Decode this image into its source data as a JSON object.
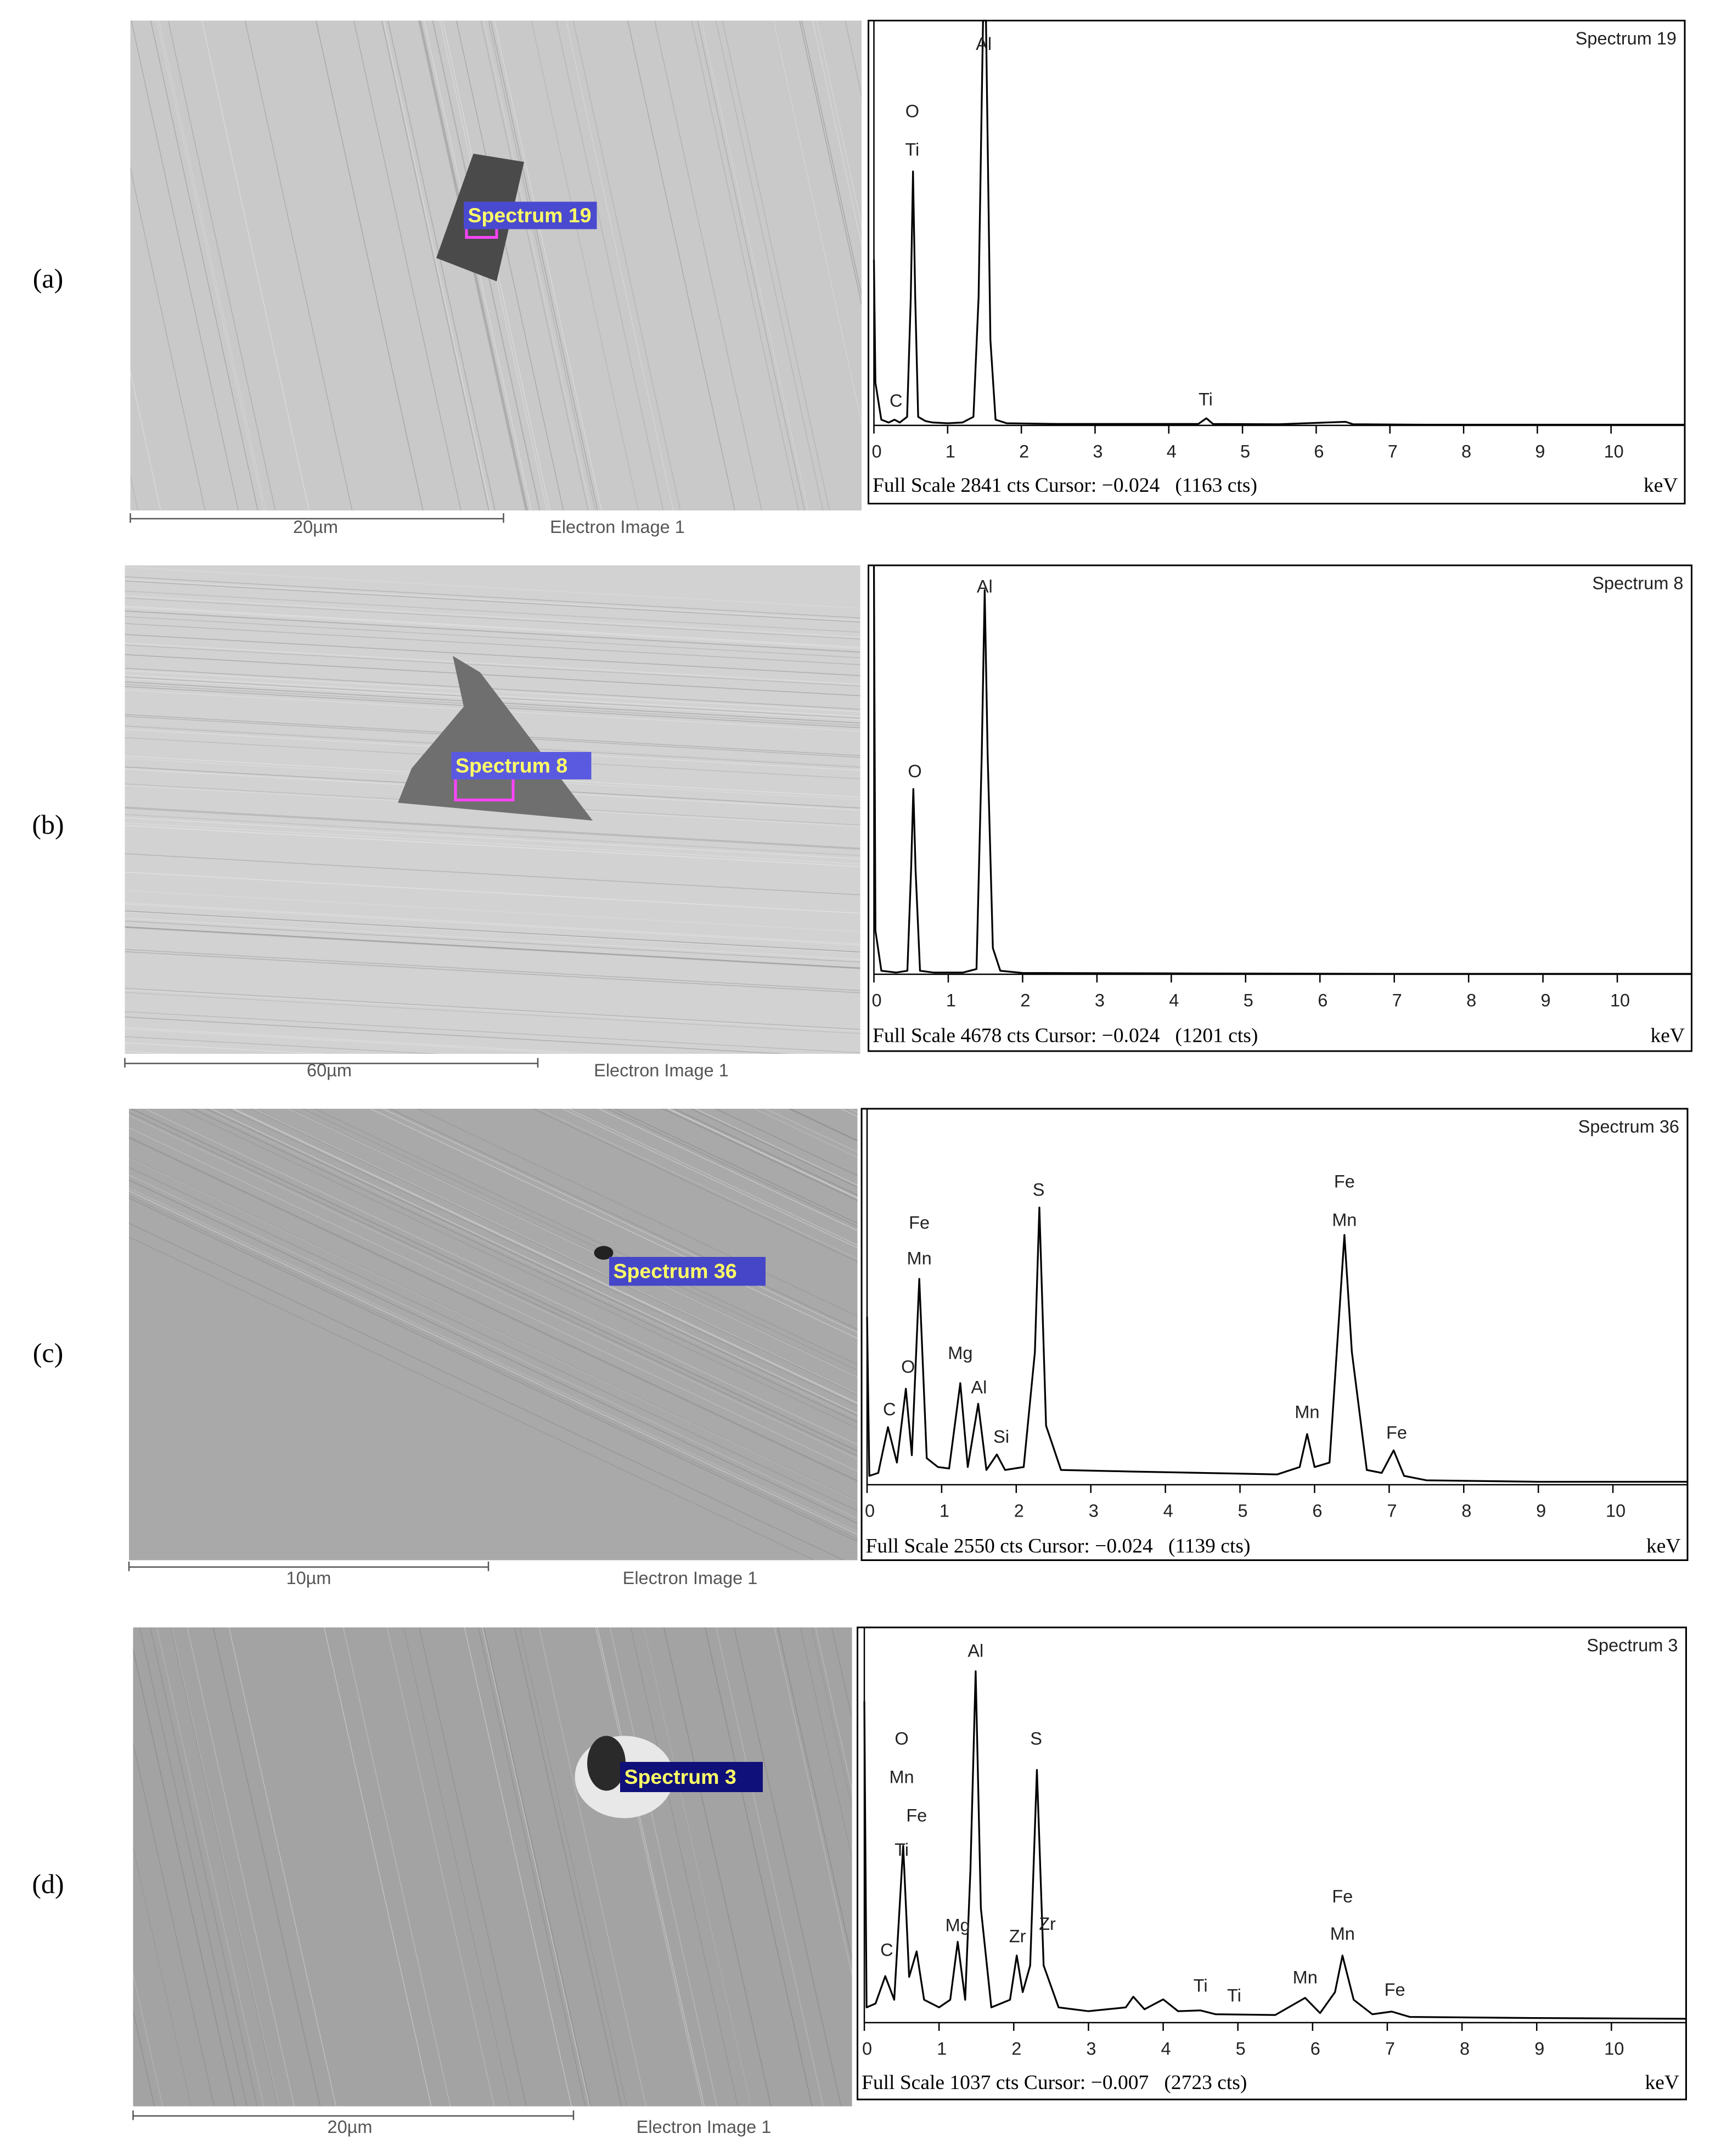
{
  "panels": [
    {
      "label": "(a)",
      "sem": {
        "spectrum_label": "Spectrum 19",
        "scale_bar": "20µm",
        "caption": "Electron Image 1"
      }
    },
    {
      "label": "(b)",
      "sem": {
        "spectrum_label": "Spectrum 8",
        "scale_bar": "60µm",
        "caption": "Electron Image 1"
      }
    },
    {
      "label": "(c)",
      "sem": {
        "spectrum_label": "Spectrum 36",
        "scale_bar": "10µm",
        "caption": "Electron Image 1"
      }
    },
    {
      "label": "(d)",
      "sem": {
        "spectrum_label": "Spectrum 3",
        "scale_bar": "20µm",
        "caption": "Electron Image 1"
      }
    }
  ],
  "chart_data": [
    {
      "type": "line",
      "title": "Spectrum 19",
      "footer": "Full Scale 2841 cts Cursor: −0.024   (1163 cts)",
      "x_label": "keV",
      "color": "#000000",
      "x": [
        0,
        0.02,
        0.1,
        0.2,
        0.28,
        0.35,
        0.45,
        0.5,
        0.53,
        0.56,
        0.6,
        0.7,
        0.8,
        1.0,
        1.2,
        1.35,
        1.42,
        1.48,
        1.52,
        1.58,
        1.65,
        1.8,
        2.5,
        3.5,
        4.4,
        4.51,
        4.6,
        5.5,
        6.4,
        6.5,
        7.5,
        9,
        11
      ],
      "values": [
        1163,
        300,
        40,
        20,
        40,
        20,
        60,
        900,
        1782,
        900,
        60,
        30,
        20,
        15,
        20,
        60,
        900,
        2841,
        2841,
        600,
        40,
        15,
        10,
        10,
        10,
        50,
        10,
        8,
        25,
        8,
        5,
        5,
        5
      ],
      "xlim": [
        0,
        11
      ],
      "ylim": [
        0,
        2841
      ],
      "xticks": [
        0,
        1,
        2,
        3,
        4,
        5,
        6,
        7,
        8,
        9,
        10
      ],
      "annotations": [
        {
          "label": "Al",
          "x": 1.49,
          "y": 2668
        },
        {
          "label": "O",
          "x": 0.52,
          "y": 2196
        },
        {
          "label": "Ti",
          "x": 0.52,
          "y": 1926
        },
        {
          "label": "C",
          "x": 0.3,
          "y": 164
        },
        {
          "label": "Ti",
          "x": 4.5,
          "y": 173
        }
      ]
    },
    {
      "type": "line",
      "title": "Spectrum 8",
      "footer": "Full Scale 4678 cts Cursor: −0.024   (1201 cts)",
      "x_label": "keV",
      "color": "#000000",
      "x": [
        0,
        0.02,
        0.1,
        0.3,
        0.45,
        0.5,
        0.53,
        0.56,
        0.62,
        0.8,
        1.2,
        1.38,
        1.45,
        1.49,
        1.53,
        1.6,
        1.7,
        2,
        4,
        7,
        11
      ],
      "values": [
        4678,
        500,
        40,
        20,
        40,
        1200,
        2119,
        1200,
        40,
        20,
        20,
        60,
        2500,
        4395,
        2500,
        300,
        40,
        15,
        10,
        5,
        5
      ],
      "xlim": [
        0,
        11
      ],
      "ylim": [
        0,
        4678
      ],
      "xticks": [
        0,
        1,
        2,
        3,
        4,
        5,
        6,
        7,
        8,
        9,
        10
      ],
      "annotations": [
        {
          "label": "Al",
          "x": 1.49,
          "y": 4420
        },
        {
          "label": "O",
          "x": 0.55,
          "y": 2308
        }
      ]
    },
    {
      "type": "line",
      "title": "Spectrum 36",
      "footer": "Full Scale 2550 cts Cursor: −0.024   (1139 cts)",
      "x_label": "keV",
      "color": "#000000",
      "x": [
        0,
        0.03,
        0.15,
        0.28,
        0.4,
        0.52,
        0.6,
        0.7,
        0.8,
        0.95,
        1.1,
        1.25,
        1.35,
        1.49,
        1.6,
        1.74,
        1.85,
        2.1,
        2.25,
        2.31,
        2.4,
        2.6,
        3.5,
        4.5,
        5.5,
        5.8,
        5.9,
        6.0,
        6.2,
        6.4,
        6.5,
        6.7,
        6.9,
        7.06,
        7.2,
        7.5,
        9,
        11
      ],
      "values": [
        1139,
        60,
        80,
        391,
        150,
        651,
        200,
        1396,
        180,
        120,
        110,
        689,
        120,
        549,
        100,
        205,
        100,
        120,
        900,
        1880,
        400,
        100,
        90,
        80,
        70,
        120,
        344,
        120,
        150,
        1694,
        900,
        100,
        80,
        233,
        60,
        30,
        20,
        20
      ],
      "xlim": [
        0,
        11
      ],
      "ylim": [
        0,
        2550
      ],
      "xticks": [
        0,
        1,
        2,
        3,
        4,
        5,
        6,
        7,
        8,
        9,
        10
      ],
      "annotations": [
        {
          "label": "Fe",
          "x": 0.7,
          "y": 1768
        },
        {
          "label": "Mn",
          "x": 0.7,
          "y": 1526
        },
        {
          "label": "O",
          "x": 0.55,
          "y": 791
        },
        {
          "label": "C",
          "x": 0.3,
          "y": 503
        },
        {
          "label": "Mg",
          "x": 1.25,
          "y": 884
        },
        {
          "label": "Al",
          "x": 1.5,
          "y": 651
        },
        {
          "label": "Si",
          "x": 1.8,
          "y": 316
        },
        {
          "label": "S",
          "x": 2.3,
          "y": 1992
        },
        {
          "label": "Fe",
          "x": 6.4,
          "y": 2047
        },
        {
          "label": "Mn",
          "x": 6.4,
          "y": 1787
        },
        {
          "label": "Mn",
          "x": 5.9,
          "y": 484
        },
        {
          "label": "Fe",
          "x": 7.1,
          "y": 344
        }
      ]
    },
    {
      "type": "line",
      "title": "Spectrum 3",
      "footer": "Full Scale 1037 cts Cursor: −0.007   (2723 cts)",
      "x_label": "keV",
      "color": "#000000",
      "x": [
        0,
        0.03,
        0.15,
        0.28,
        0.4,
        0.52,
        0.6,
        0.7,
        0.8,
        1.0,
        1.15,
        1.25,
        1.35,
        1.42,
        1.49,
        1.56,
        1.7,
        1.95,
        2.04,
        2.12,
        2.22,
        2.31,
        2.4,
        2.6,
        3.0,
        3.5,
        3.6,
        3.75,
        4.0,
        4.2,
        4.5,
        4.7,
        5.5,
        5.9,
        6.1,
        6.3,
        6.4,
        6.55,
        6.8,
        7.06,
        7.3,
        9,
        11
      ],
      "values": [
        843,
        40,
        50,
        122,
        60,
        464,
        120,
        187,
        60,
        40,
        60,
        212,
        60,
        400,
        922,
        300,
        40,
        60,
        176,
        80,
        150,
        663,
        150,
        40,
        30,
        40,
        68,
        35,
        61,
        30,
        32,
        22,
        20,
        65,
        25,
        80,
        176,
        60,
        22,
        29,
        15,
        12,
        10
      ],
      "xlim": [
        0,
        11
      ],
      "ylim": [
        0,
        1037
      ],
      "xticks": [
        0,
        1,
        2,
        3,
        4,
        5,
        6,
        7,
        8,
        9,
        10
      ],
      "annotations": [
        {
          "label": "Al",
          "x": 1.49,
          "y": 972
        },
        {
          "label": "O",
          "x": 0.5,
          "y": 742
        },
        {
          "label": "Mn",
          "x": 0.5,
          "y": 641
        },
        {
          "label": "Fe",
          "x": 0.7,
          "y": 540
        },
        {
          "label": "Ti",
          "x": 0.5,
          "y": 450
        },
        {
          "label": "C",
          "x": 0.3,
          "y": 187
        },
        {
          "label": "Mg",
          "x": 1.25,
          "y": 252
        },
        {
          "label": "Zr",
          "x": 2.05,
          "y": 223
        },
        {
          "label": "Zr",
          "x": 2.45,
          "y": 256
        },
        {
          "label": "S",
          "x": 2.3,
          "y": 742
        },
        {
          "label": "Ti",
          "x": 4.5,
          "y": 94
        },
        {
          "label": "Ti",
          "x": 4.95,
          "y": 68
        },
        {
          "label": "Mn",
          "x": 5.9,
          "y": 115
        },
        {
          "label": "Fe",
          "x": 6.4,
          "y": 328
        },
        {
          "label": "Mn",
          "x": 6.4,
          "y": 230
        },
        {
          "label": "Fe",
          "x": 7.1,
          "y": 83
        }
      ]
    }
  ]
}
